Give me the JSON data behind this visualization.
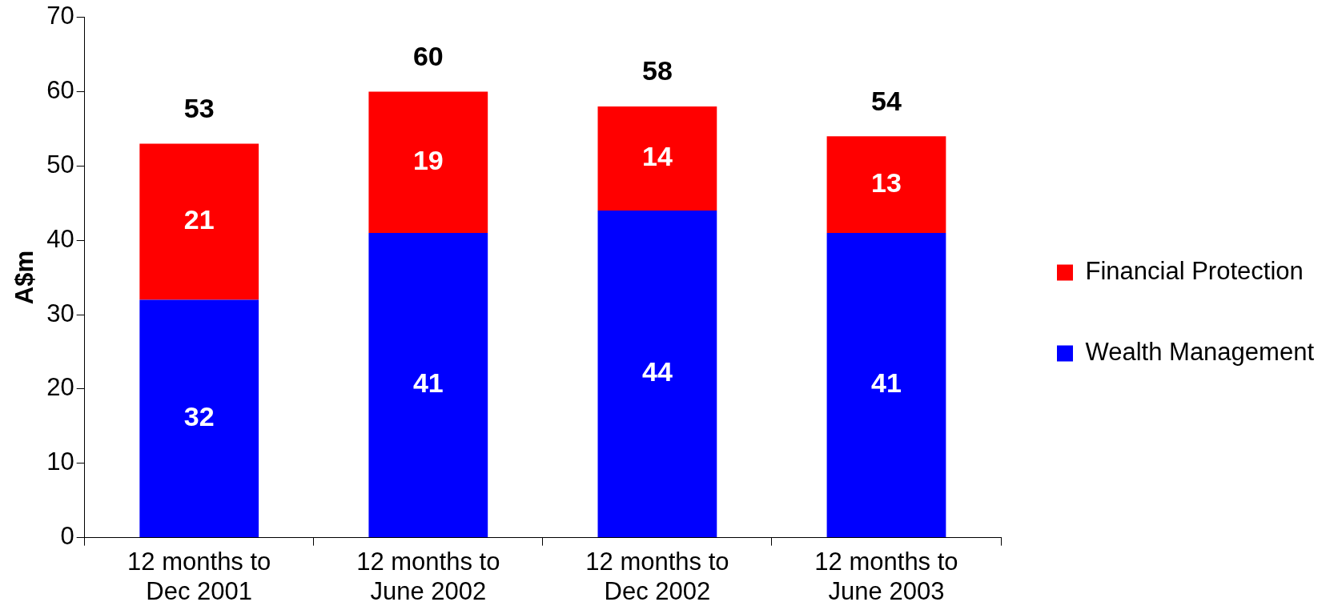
{
  "chart_data": {
    "type": "bar",
    "stacked": true,
    "ylabel": "A$m",
    "categories": [
      "12 months to Dec 2001",
      "12 months to June 2002",
      "12 months to Dec 2002",
      "12 months to June 2003"
    ],
    "series": [
      {
        "name": "Wealth Management",
        "color": "#0000ff",
        "values": [
          32,
          41,
          44,
          41
        ]
      },
      {
        "name": "Financial Protection",
        "color": "#ff0000",
        "values": [
          21,
          19,
          14,
          13
        ]
      }
    ],
    "totals": [
      "53",
      "60",
      "58",
      "54"
    ],
    "data_labels": true,
    "ylim": [
      0,
      70
    ],
    "yticks": [
      0,
      10,
      20,
      30,
      40,
      50,
      60,
      70
    ],
    "grid": false,
    "legend": "right"
  }
}
